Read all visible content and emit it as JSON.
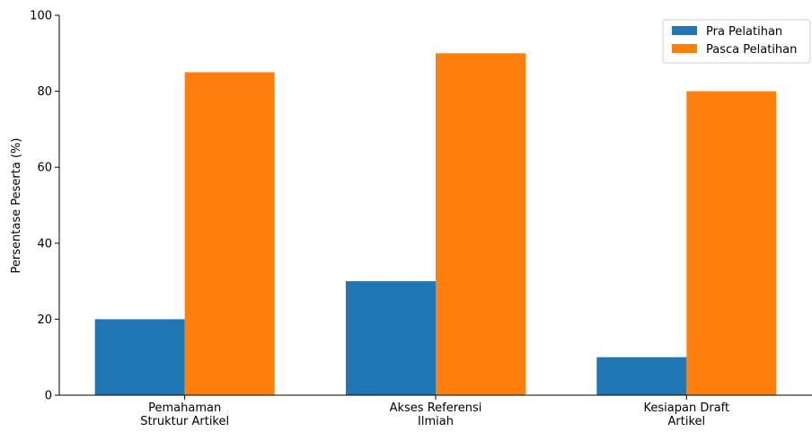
{
  "chart_data": {
    "type": "bar",
    "title": "",
    "xlabel": "",
    "ylabel": "Persentase Peserta (%)",
    "ylim": [
      0,
      100
    ],
    "yticks": [
      0,
      20,
      40,
      60,
      80,
      100
    ],
    "categories": [
      [
        "Pemahaman",
        "Struktur Artikel"
      ],
      [
        "Akses Referensi",
        "Ilmiah"
      ],
      [
        "Kesiapan Draft",
        "Artikel"
      ]
    ],
    "series": [
      {
        "name": "Pra Pelatihan",
        "color": "#1f77b4",
        "values": [
          20,
          30,
          10
        ]
      },
      {
        "name": "Pasca Pelatihan",
        "color": "#ff7f0e",
        "values": [
          85,
          90,
          80
        ]
      }
    ],
    "legend": {
      "position": "top-right"
    },
    "grid": false
  }
}
